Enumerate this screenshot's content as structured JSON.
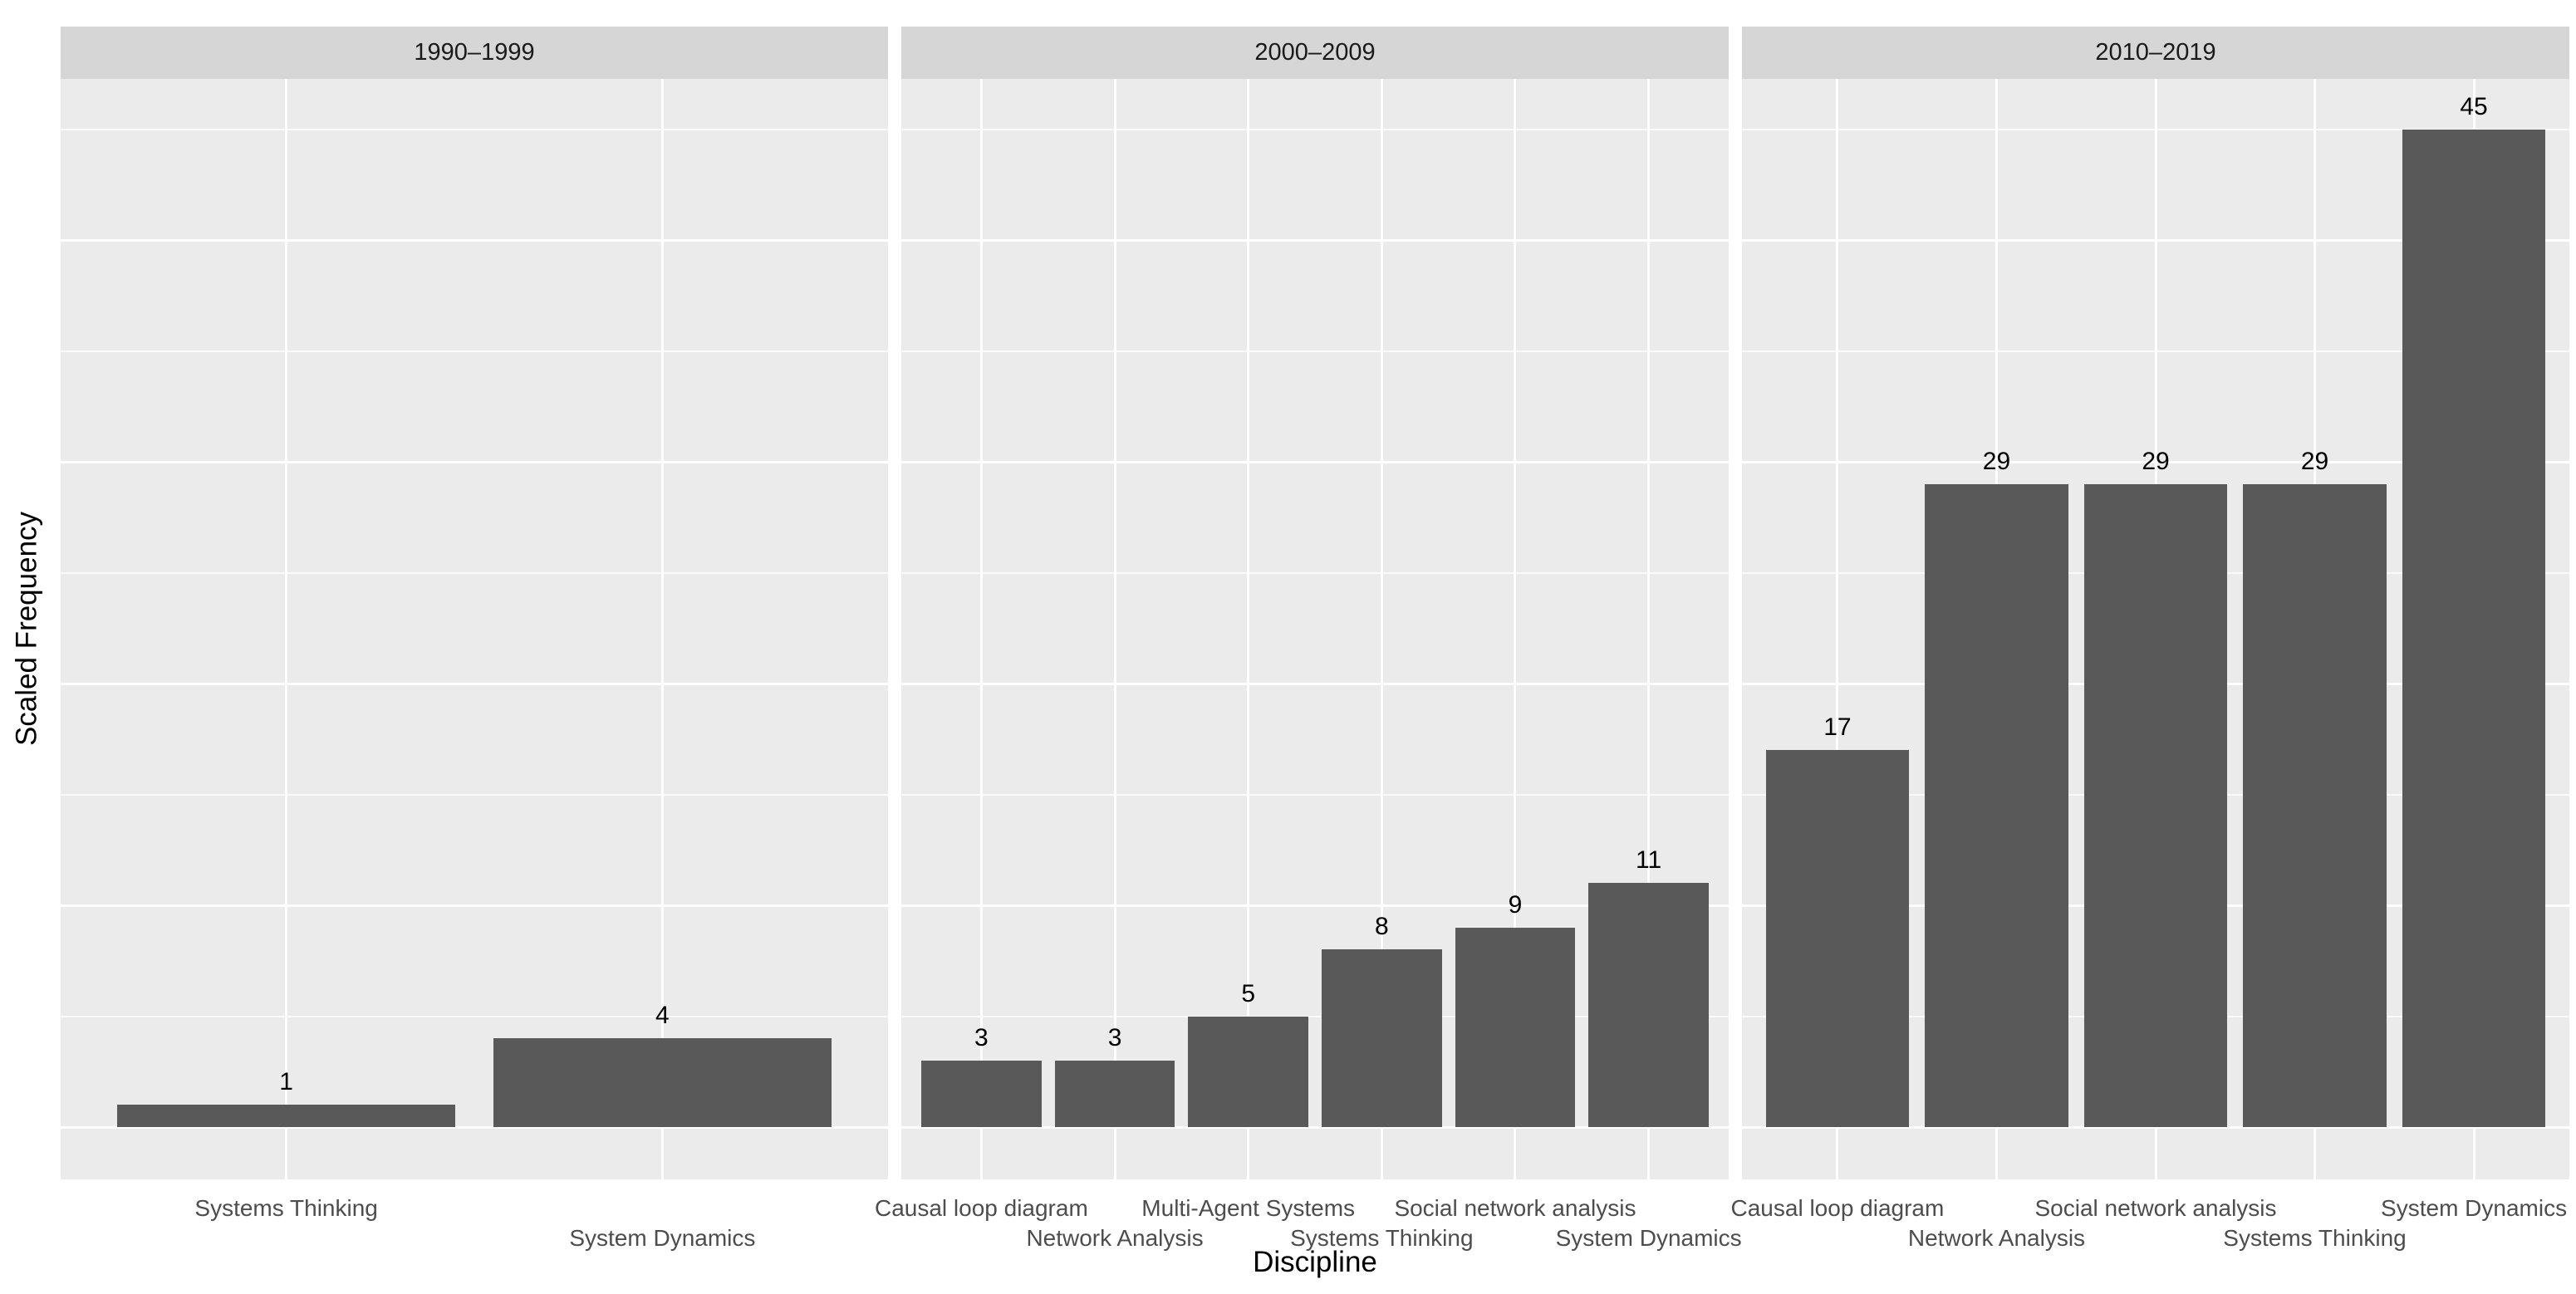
{
  "chart_data": {
    "type": "bar",
    "title": "",
    "xlabel": "Discipline",
    "ylabel": "Scaled Frequency",
    "legend_position": "none",
    "grid": "on",
    "ylim": [
      0,
      45
    ],
    "y_expand_fraction": 0.05,
    "gridline_values": {
      "major": [
        0,
        10,
        20,
        30,
        40
      ],
      "minor": [
        5,
        15,
        25,
        35,
        45
      ]
    },
    "bar_value_labels_shown": true,
    "y_tick_labels_shown": false,
    "facets": [
      {
        "label": "1990–1999",
        "categories": [
          "Systems Thinking",
          "System Dynamics"
        ],
        "values": [
          1,
          4
        ]
      },
      {
        "label": "2000–2009",
        "categories": [
          "Causal loop diagram",
          "Network Analysis",
          "Multi-Agent Systems",
          "Systems Thinking",
          "Social network analysis",
          "System Dynamics"
        ],
        "values": [
          3,
          3,
          5,
          8,
          9,
          11
        ]
      },
      {
        "label": "2010–2019",
        "categories": [
          "Causal loop diagram",
          "Network Analysis",
          "Social network analysis",
          "Systems Thinking",
          "System Dynamics"
        ],
        "values": [
          17,
          29,
          29,
          29,
          45
        ]
      }
    ]
  },
  "colors": {
    "figure_background": "#ffffff",
    "panel_background": "#ebebeb",
    "strip_background": "#d6d6d6",
    "bar_fill": "#595959",
    "gridline": "#ffffff",
    "axis_text": "#4d4d4d",
    "strip_text": "#1a1a1a",
    "title_text": "#000000"
  }
}
